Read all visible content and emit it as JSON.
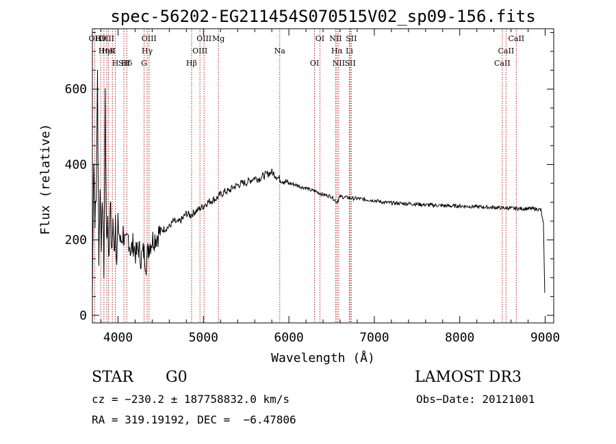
{
  "chart_data": {
    "type": "line",
    "title": "spec-56202-EG211454S070515V02_sp09-156.fits",
    "xlabel": "Wavelength (Å)",
    "ylabel": "Flux (relative)",
    "xlim": [
      3700,
      9100
    ],
    "ylim": [
      -20,
      760
    ],
    "xticks": [
      4000,
      5000,
      6000,
      7000,
      8000,
      9000
    ],
    "yticks": [
      0,
      200,
      400,
      600
    ],
    "series": [
      {
        "name": "spectrum",
        "x": [
          3700,
          3715,
          3730,
          3745,
          3760,
          3775,
          3790,
          3805,
          3820,
          3835,
          3850,
          3865,
          3880,
          3895,
          3910,
          3925,
          3940,
          3955,
          3970,
          3985,
          4000,
          4030,
          4060,
          4090,
          4120,
          4150,
          4180,
          4210,
          4240,
          4270,
          4300,
          4330,
          4360,
          4400,
          4450,
          4500,
          4550,
          4600,
          4650,
          4700,
          4750,
          4800,
          4850,
          4900,
          4950,
          5000,
          5050,
          5100,
          5150,
          5200,
          5250,
          5300,
          5350,
          5400,
          5450,
          5500,
          5550,
          5600,
          5650,
          5700,
          5750,
          5800,
          5850,
          5900,
          5950,
          6000,
          6050,
          6100,
          6150,
          6200,
          6250,
          6300,
          6350,
          6400,
          6450,
          6500,
          6560,
          6600,
          6650,
          6700,
          6750,
          6800,
          6900,
          7000,
          7100,
          7200,
          7300,
          7400,
          7500,
          7600,
          7700,
          7800,
          7900,
          8000,
          8100,
          8200,
          8300,
          8400,
          8500,
          8600,
          8700,
          8800,
          8900,
          8950,
          8980,
          8995
        ],
        "values": [
          50,
          420,
          260,
          310,
          640,
          150,
          330,
          200,
          300,
          120,
          590,
          180,
          260,
          140,
          330,
          150,
          250,
          160,
          270,
          140,
          240,
          190,
          220,
          180,
          210,
          170,
          190,
          160,
          180,
          150,
          170,
          140,
          185,
          200,
          210,
          225,
          230,
          235,
          250,
          245,
          255,
          270,
          265,
          275,
          282,
          290,
          300,
          305,
          310,
          320,
          328,
          330,
          340,
          345,
          350,
          352,
          358,
          365,
          362,
          370,
          375,
          380,
          370,
          360,
          356,
          350,
          348,
          345,
          340,
          338,
          332,
          330,
          325,
          320,
          318,
          315,
          300,
          315,
          313,
          312,
          310,
          310,
          307,
          305,
          300,
          298,
          297,
          296,
          295,
          293,
          292,
          291,
          290,
          290,
          289,
          288,
          287,
          286,
          285,
          284,
          283,
          283,
          282,
          280,
          240,
          60
        ]
      }
    ],
    "line_markers": [
      {
        "label": "Hθ",
        "x": 3798
      },
      {
        "label": "K",
        "x": 3934
      },
      {
        "label": "Hδ",
        "x": 4102
      },
      {
        "label": "OII",
        "x": 3727
      },
      {
        "label": "HeI",
        "x": 3889
      },
      {
        "label": "SII",
        "x": 4069
      },
      {
        "label": "OIII",
        "x": 3869
      },
      {
        "label": "Hη",
        "x": 3835
      },
      {
        "label": "H",
        "x": 3969
      },
      {
        "label": "OIII",
        "x": 4363
      },
      {
        "label": "Hγ",
        "x": 4341
      },
      {
        "label": "G",
        "x": 4305
      },
      {
        "label": "OIII",
        "x": 5007
      },
      {
        "label": "OIII",
        "x": 4959
      },
      {
        "label": "Hβ",
        "x": 4861
      },
      {
        "label": "Mg",
        "x": 5175
      },
      {
        "label": "Na",
        "x": 5893
      },
      {
        "label": "OI",
        "x": 6300
      },
      {
        "label": "OI",
        "x": 6363
      },
      {
        "label": "Hα",
        "x": 6563
      },
      {
        "label": "SII",
        "x": 6717
      },
      {
        "label": "NII",
        "x": 6548
      },
      {
        "label": "Li",
        "x": 6708
      },
      {
        "label": "NII",
        "x": 6583
      },
      {
        "label": "SII",
        "x": 6731
      },
      {
        "label": "CaII",
        "x": 8542
      },
      {
        "label": "CaII",
        "x": 8498
      },
      {
        "label": "CaII",
        "x": 8662
      }
    ]
  },
  "info": {
    "object_class": "STAR",
    "subclass": "G0",
    "survey": "LAMOST DR3",
    "redshift_line": "cz = −230.2 ± 187758832.0 km/s",
    "obs_date_line": "Obs−Date: 20121001",
    "coord_line": "RA = 319.19192, DEC =  −6.47806"
  },
  "colors": {
    "spectrum": "#000000",
    "marker_line": "#b01818",
    "axes": "#000000"
  }
}
